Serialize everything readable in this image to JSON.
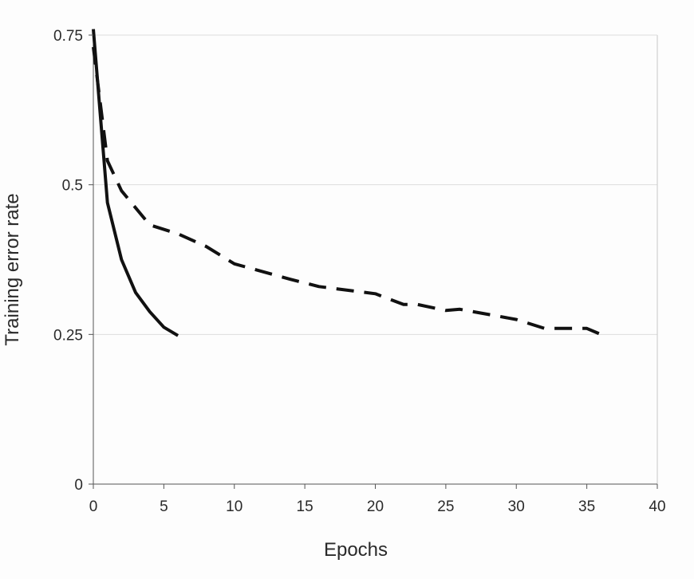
{
  "chart_data": {
    "type": "line",
    "title": "",
    "xlabel": "Epochs",
    "ylabel": "Training error rate",
    "xlim": [
      0,
      40
    ],
    "ylim": [
      0,
      0.75
    ],
    "xticks": [
      0,
      5,
      10,
      15,
      20,
      25,
      30,
      35,
      40
    ],
    "yticks": [
      0,
      0.25,
      0.5,
      0.75
    ],
    "xtick_labels": [
      "0",
      "5",
      "10",
      "15",
      "20",
      "25",
      "30",
      "35",
      "40"
    ],
    "ytick_labels": [
      "0",
      "0.25",
      "0.5",
      "0.75"
    ],
    "grid": "horizontal",
    "legend": "none",
    "colors": {
      "line": "#111111",
      "grid": "#dddddd",
      "frame": "#c8c8c8",
      "axis": "#555555"
    },
    "series": [
      {
        "style": "solid",
        "x": [
          0,
          1,
          2,
          3,
          4,
          5,
          6
        ],
        "y": [
          0.76,
          0.47,
          0.375,
          0.32,
          0.288,
          0.262,
          0.248
        ]
      },
      {
        "style": "dashed",
        "x": [
          0,
          1,
          2,
          4,
          6,
          8,
          10,
          14,
          16,
          20,
          22,
          23,
          25,
          26,
          30,
          32,
          35,
          36
        ],
        "y": [
          0.73,
          0.54,
          0.49,
          0.433,
          0.418,
          0.397,
          0.368,
          0.342,
          0.33,
          0.318,
          0.3,
          0.3,
          0.29,
          0.292,
          0.275,
          0.26,
          0.26,
          0.25
        ]
      }
    ]
  }
}
